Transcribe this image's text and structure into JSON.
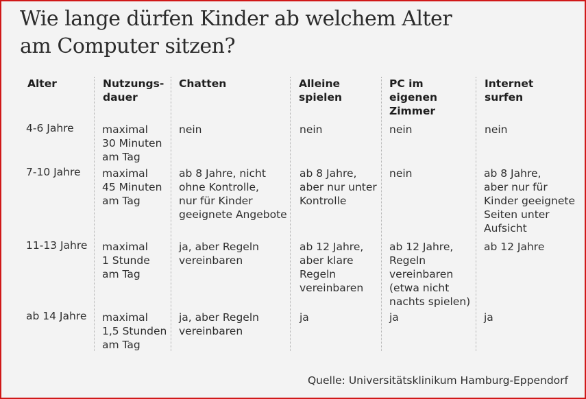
{
  "title_line1": "Wie lange dürfen Kinder ab welchem Alter",
  "title_line2": "am Computer sitzen?",
  "headers": [
    "Alter",
    "Nutzungs-\ndauer",
    "Chatten",
    "Alleine\nspielen",
    "PC im\neigenen\nZimmer",
    "Internet\nsurfen"
  ],
  "rows": [
    [
      "4-6 Jahre",
      "maximal\n30 Minuten\nam Tag",
      "nein",
      "nein",
      "nein",
      "nein"
    ],
    [
      "7-10 Jahre",
      "maximal\n45 Minuten\nam Tag",
      "ab 8 Jahre, nicht\nohne Kontrolle,\nnur für Kinder\ngeeignete Angebote",
      "ab 8 Jahre,\naber nur unter\nKontrolle",
      "nein",
      "ab 8 Jahre,\naber nur für\nKinder geeignete\nSeiten unter\nAufsicht"
    ],
    [
      "11-13 Jahre",
      "maximal\n1 Stunde\nam Tag",
      "ja, aber Regeln\nvereinbaren",
      "ab 12 Jahre,\naber klare\nRegeln\nvereinbaren",
      "ab 12 Jahre,\nRegeln\nvereinbaren\n(etwa nicht\nnachts spielen)",
      "ab 12 Jahre"
    ],
    [
      "ab 14 Jahre",
      "maximal\n1,5 Stunden\nam Tag",
      "ja, aber Regeln\nvereinbaren",
      "ja",
      "ja",
      "ja"
    ]
  ],
  "source": "Quelle: Universitätsklinikum Hamburg-Eppendorf",
  "colors": {
    "border": "#d01818",
    "background": "#f3f3f3",
    "text": "#2e2e2e"
  }
}
